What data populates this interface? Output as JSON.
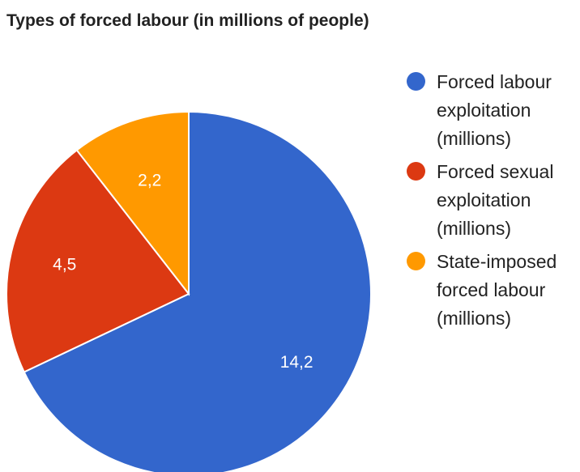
{
  "chart_data": {
    "type": "pie",
    "title": "Types of forced labour (in millions of people)",
    "slices": [
      {
        "label": "Forced labour exploitation (millions)",
        "value": 14.2,
        "value_label": "14,2",
        "color": "#3366cc"
      },
      {
        "label": "Forced sexual exploitation (millions)",
        "value": 4.5,
        "value_label": "4,5",
        "color": "#dc3912"
      },
      {
        "label": "State-imposed forced labour (millions)",
        "value": 2.2,
        "value_label": "2,2",
        "color": "#ff9900"
      }
    ],
    "legend_position": "right",
    "start_angle_deg": 0,
    "direction": "clockwise"
  }
}
